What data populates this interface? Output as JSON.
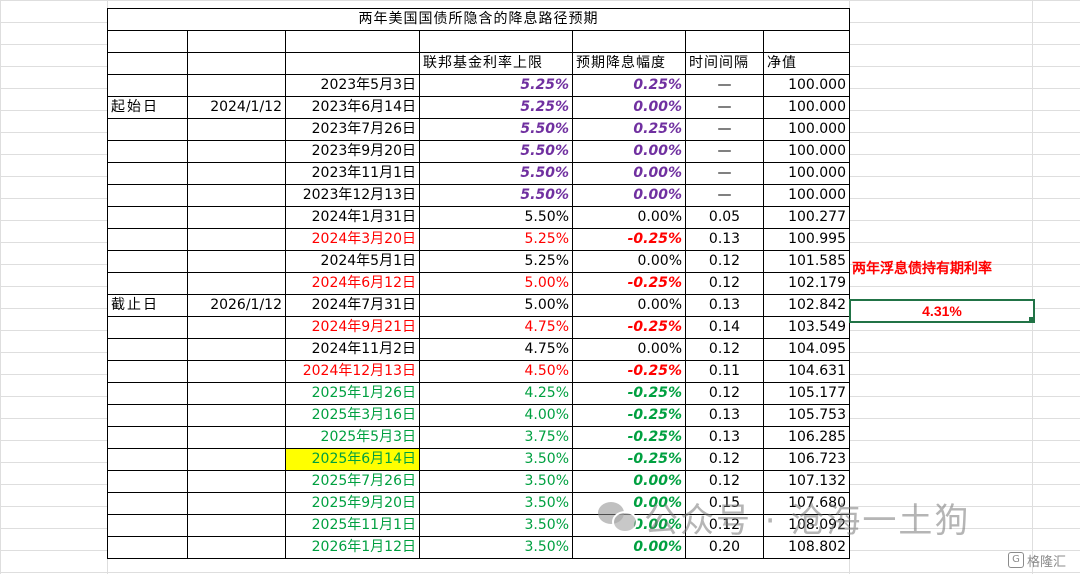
{
  "sheet": {
    "title": "两年美国国债所隐含的降息路径预期",
    "headers": {
      "rate_cap": "联邦基金利率上限",
      "cut_size": "预期降息幅度",
      "interval": "时间间隔",
      "nav": "净值"
    },
    "labels": {
      "start": "起始日",
      "start_date": "2024/1/12",
      "end": "截止日",
      "end_date": "2026/1/12"
    },
    "rows": [
      {
        "date": "2023年5月3日",
        "rate": "5.25%",
        "cut": "0.25%",
        "interval": "—",
        "nav": "100.000",
        "date_color": "black",
        "rate_style": "purple",
        "cut_style": "purple"
      },
      {
        "date": "2023年6月14日",
        "rate": "5.25%",
        "cut": "0.00%",
        "interval": "—",
        "nav": "100.000",
        "date_color": "black",
        "rate_style": "purple",
        "cut_style": "purple"
      },
      {
        "date": "2023年7月26日",
        "rate": "5.50%",
        "cut": "0.25%",
        "interval": "—",
        "nav": "100.000",
        "date_color": "black",
        "rate_style": "purple",
        "cut_style": "purple"
      },
      {
        "date": "2023年9月20日",
        "rate": "5.50%",
        "cut": "0.00%",
        "interval": "—",
        "nav": "100.000",
        "date_color": "black",
        "rate_style": "purple",
        "cut_style": "purple"
      },
      {
        "date": "2023年11月1日",
        "rate": "5.50%",
        "cut": "0.00%",
        "interval": "—",
        "nav": "100.000",
        "date_color": "black",
        "rate_style": "purple",
        "cut_style": "purple"
      },
      {
        "date": "2023年12月13日",
        "rate": "5.50%",
        "cut": "0.00%",
        "interval": "—",
        "nav": "100.000",
        "date_color": "black",
        "rate_style": "purple",
        "cut_style": "purple"
      },
      {
        "date": "2024年1月31日",
        "rate": "5.50%",
        "cut": "0.00%",
        "interval": "0.05",
        "nav": "100.277",
        "date_color": "black",
        "rate_style": "black",
        "cut_style": "black"
      },
      {
        "date": "2024年3月20日",
        "rate": "5.25%",
        "cut": "-0.25%",
        "interval": "0.13",
        "nav": "100.995",
        "date_color": "red",
        "rate_style": "red",
        "cut_style": "red"
      },
      {
        "date": "2024年5月1日",
        "rate": "5.25%",
        "cut": "0.00%",
        "interval": "0.12",
        "nav": "101.585",
        "date_color": "black",
        "rate_style": "black",
        "cut_style": "black"
      },
      {
        "date": "2024年6月12日",
        "rate": "5.00%",
        "cut": "-0.25%",
        "interval": "0.12",
        "nav": "102.179",
        "date_color": "red",
        "rate_style": "red",
        "cut_style": "red"
      },
      {
        "date": "2024年7月31日",
        "rate": "5.00%",
        "cut": "0.00%",
        "interval": "0.13",
        "nav": "102.842",
        "date_color": "black",
        "rate_style": "black",
        "cut_style": "black"
      },
      {
        "date": "2024年9月21日",
        "rate": "4.75%",
        "cut": "-0.25%",
        "interval": "0.14",
        "nav": "103.549",
        "date_color": "red",
        "rate_style": "red",
        "cut_style": "red"
      },
      {
        "date": "2024年11月2日",
        "rate": "4.75%",
        "cut": "0.00%",
        "interval": "0.12",
        "nav": "104.095",
        "date_color": "black",
        "rate_style": "black",
        "cut_style": "black"
      },
      {
        "date": "2024年12月13日",
        "rate": "4.50%",
        "cut": "-0.25%",
        "interval": "0.11",
        "nav": "104.631",
        "date_color": "red",
        "rate_style": "red",
        "cut_style": "red"
      },
      {
        "date": "2025年1月26日",
        "rate": "4.25%",
        "cut": "-0.25%",
        "interval": "0.12",
        "nav": "105.177",
        "date_color": "green",
        "rate_style": "green",
        "cut_style": "green"
      },
      {
        "date": "2025年3月16日",
        "rate": "4.00%",
        "cut": "-0.25%",
        "interval": "0.13",
        "nav": "105.753",
        "date_color": "green",
        "rate_style": "green",
        "cut_style": "green"
      },
      {
        "date": "2025年5月3日",
        "rate": "3.75%",
        "cut": "-0.25%",
        "interval": "0.13",
        "nav": "106.285",
        "date_color": "green",
        "rate_style": "green",
        "cut_style": "green"
      },
      {
        "date": "2025年6月14日",
        "rate": "3.50%",
        "cut": "-0.25%",
        "interval": "0.12",
        "nav": "106.723",
        "date_color": "green",
        "rate_style": "green",
        "cut_style": "green",
        "highlight": true
      },
      {
        "date": "2025年7月26日",
        "rate": "3.50%",
        "cut": "0.00%",
        "interval": "0.12",
        "nav": "107.132",
        "date_color": "green",
        "rate_style": "green",
        "cut_style": "green"
      },
      {
        "date": "2025年9月20日",
        "rate": "3.50%",
        "cut": "0.00%",
        "interval": "0.15",
        "nav": "107.680",
        "date_color": "green",
        "rate_style": "green",
        "cut_style": "green"
      },
      {
        "date": "2025年11月1日",
        "rate": "3.50%",
        "cut": "0.00%",
        "interval": "0.12",
        "nav": "108.092",
        "date_color": "green",
        "rate_style": "green",
        "cut_style": "green"
      },
      {
        "date": "2026年1月12日",
        "rate": "3.50%",
        "cut": "0.00%",
        "interval": "0.20",
        "nav": "108.802",
        "date_color": "green",
        "rate_style": "green",
        "cut_style": "green"
      }
    ],
    "side": {
      "note_label": "两年浮息债持有期利率",
      "rate_value": "4.31%"
    }
  },
  "watermark": {
    "text": "公众号 · 沧海一土狗",
    "corner": "格隆汇",
    "icon": "wechat-icon"
  },
  "colors": {
    "purple": "#7030a0",
    "red": "#ff0000",
    "green": "#00a040",
    "highlight": "#ffff00",
    "excel_green": "#217346"
  }
}
